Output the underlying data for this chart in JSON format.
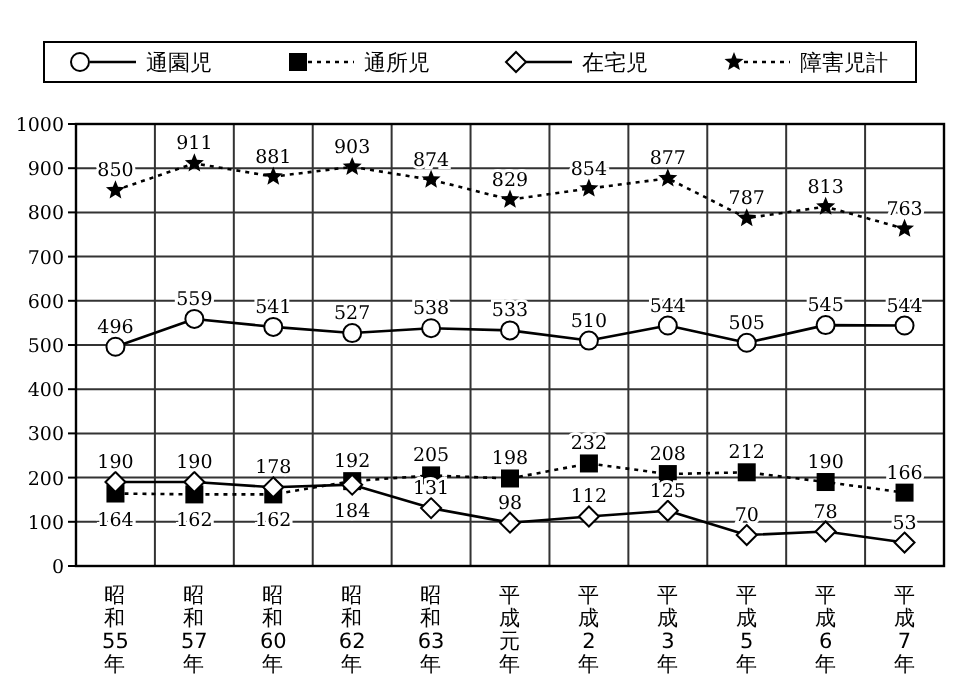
{
  "chart_data": {
    "type": "line",
    "categories": [
      "昭和55年",
      "昭和57年",
      "昭和60年",
      "昭和62年",
      "昭和63年",
      "平成元年",
      "平成2年",
      "平成3年",
      "平成5年",
      "平成6年",
      "平成7年"
    ],
    "series": [
      {
        "name": "通園児",
        "color": "#000000",
        "marker": "circle",
        "line_style": "solid",
        "values": [
          496,
          559,
          541,
          527,
          538,
          533,
          510,
          544,
          505,
          545,
          544
        ]
      },
      {
        "name": "通所児",
        "color": "#000000",
        "marker": "square",
        "line_style": "dotted",
        "values": [
          164,
          162,
          162,
          192,
          205,
          198,
          232,
          208,
          212,
          190,
          166
        ]
      },
      {
        "name": "在宅児",
        "color": "#000000",
        "marker": "diamond",
        "line_style": "solid",
        "values": [
          190,
          190,
          178,
          184,
          131,
          98,
          112,
          125,
          70,
          78,
          53
        ]
      },
      {
        "name": "障害児計",
        "color": "#000000",
        "marker": "star",
        "line_style": "dotted",
        "values": [
          850,
          911,
          881,
          903,
          874,
          829,
          854,
          877,
          787,
          813,
          763
        ]
      }
    ],
    "ylim": [
      0,
      1000
    ],
    "yticks": [
      0,
      100,
      200,
      300,
      400,
      500,
      600,
      700,
      800,
      900,
      1000
    ],
    "grid": true,
    "legend": "top",
    "data_labels": true
  }
}
